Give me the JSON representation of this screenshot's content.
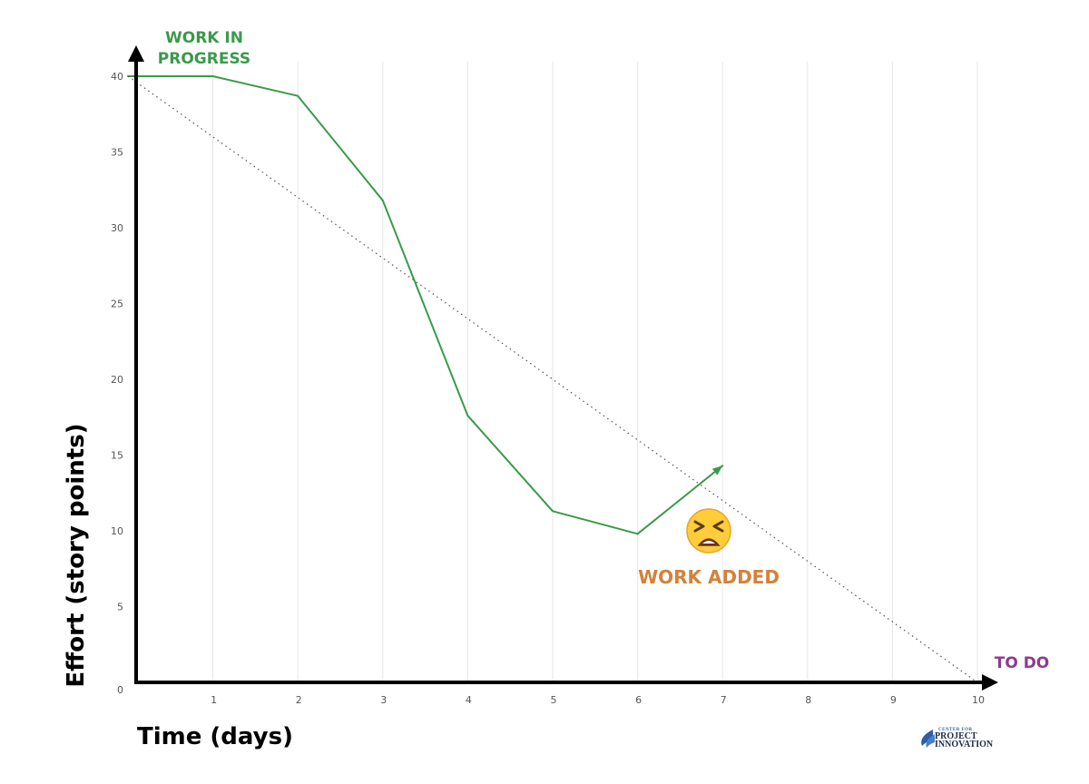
{
  "chart_data": {
    "type": "line",
    "title": "",
    "xlabel": "Time (days)",
    "ylabel": "Effort (story points)",
    "xlim": [
      0,
      10
    ],
    "ylim": [
      0,
      40
    ],
    "x_ticks": [
      "1",
      "2",
      "3",
      "4",
      "5",
      "6",
      "7",
      "8",
      "9",
      "10"
    ],
    "y_ticks": [
      "0",
      "5",
      "10",
      "15",
      "20",
      "25",
      "30",
      "35",
      "40"
    ],
    "grid": "vertical",
    "series": [
      {
        "style": "solid",
        "color": "#3a9a4a",
        "arrow_end": true,
        "points": [
          [
            0,
            40
          ],
          [
            1,
            40
          ],
          [
            2,
            38.7
          ],
          [
            3,
            31.8
          ],
          [
            4,
            17.6
          ],
          [
            5,
            11.3
          ],
          [
            6,
            9.8
          ],
          [
            7,
            14.3
          ]
        ]
      },
      {
        "style": "dotted",
        "color": "#555555",
        "points": [
          [
            0,
            40
          ],
          [
            10,
            0
          ]
        ]
      }
    ],
    "annotations": {
      "wip": {
        "lines": [
          "WORK IN",
          "PROGRESS"
        ],
        "color": "#3a9a4a"
      },
      "todo": {
        "text": "TO DO",
        "color": "#8e3a8e"
      },
      "work_added": {
        "text": "WORK ADDED",
        "color": "#d4813a",
        "emoji": "😫"
      }
    }
  },
  "logo": {
    "small_text": "CENTER FOR",
    "line1": "PROJECT",
    "line2": "INNOVATION"
  }
}
